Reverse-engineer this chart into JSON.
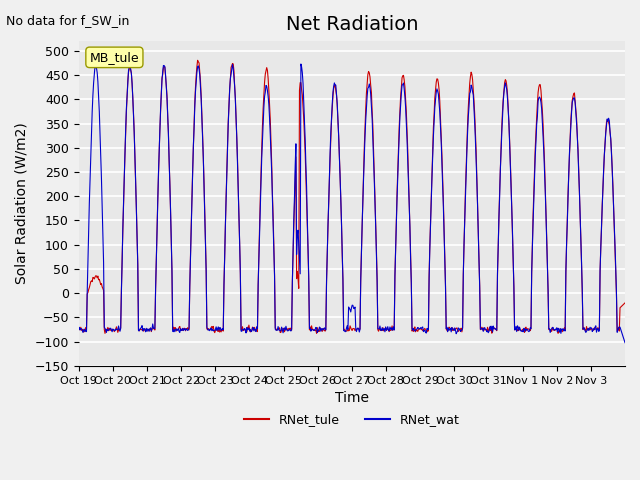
{
  "title": "Net Radiation",
  "top_left_text": "No data for f_SW_in",
  "box_label": "MB_tule",
  "ylabel": "Solar Radiation (W/m2)",
  "xlabel": "Time",
  "ylim": [
    -150,
    520
  ],
  "yticks": [
    -150,
    -100,
    -50,
    0,
    50,
    100,
    150,
    200,
    250,
    300,
    350,
    400,
    450,
    500
  ],
  "xtick_labels": [
    "Oct 19",
    "Oct 20",
    "Oct 21",
    "Oct 22",
    "Oct 23",
    "Oct 24",
    "Oct 25",
    "Oct 26",
    "Oct 27",
    "Oct 28",
    "Oct 29",
    "Oct 30",
    "Oct 31",
    "Nov 1",
    "Nov 2",
    "Nov 3"
  ],
  "color_tule": "#cc0000",
  "color_wat": "#0000cc",
  "legend_entries": [
    "RNet_tule",
    "RNet_wat"
  ],
  "background_color": "#e8e8e8",
  "plot_bg_color": "#e8e8e8",
  "title_fontsize": 14,
  "label_fontsize": 10,
  "tick_fontsize": 9
}
